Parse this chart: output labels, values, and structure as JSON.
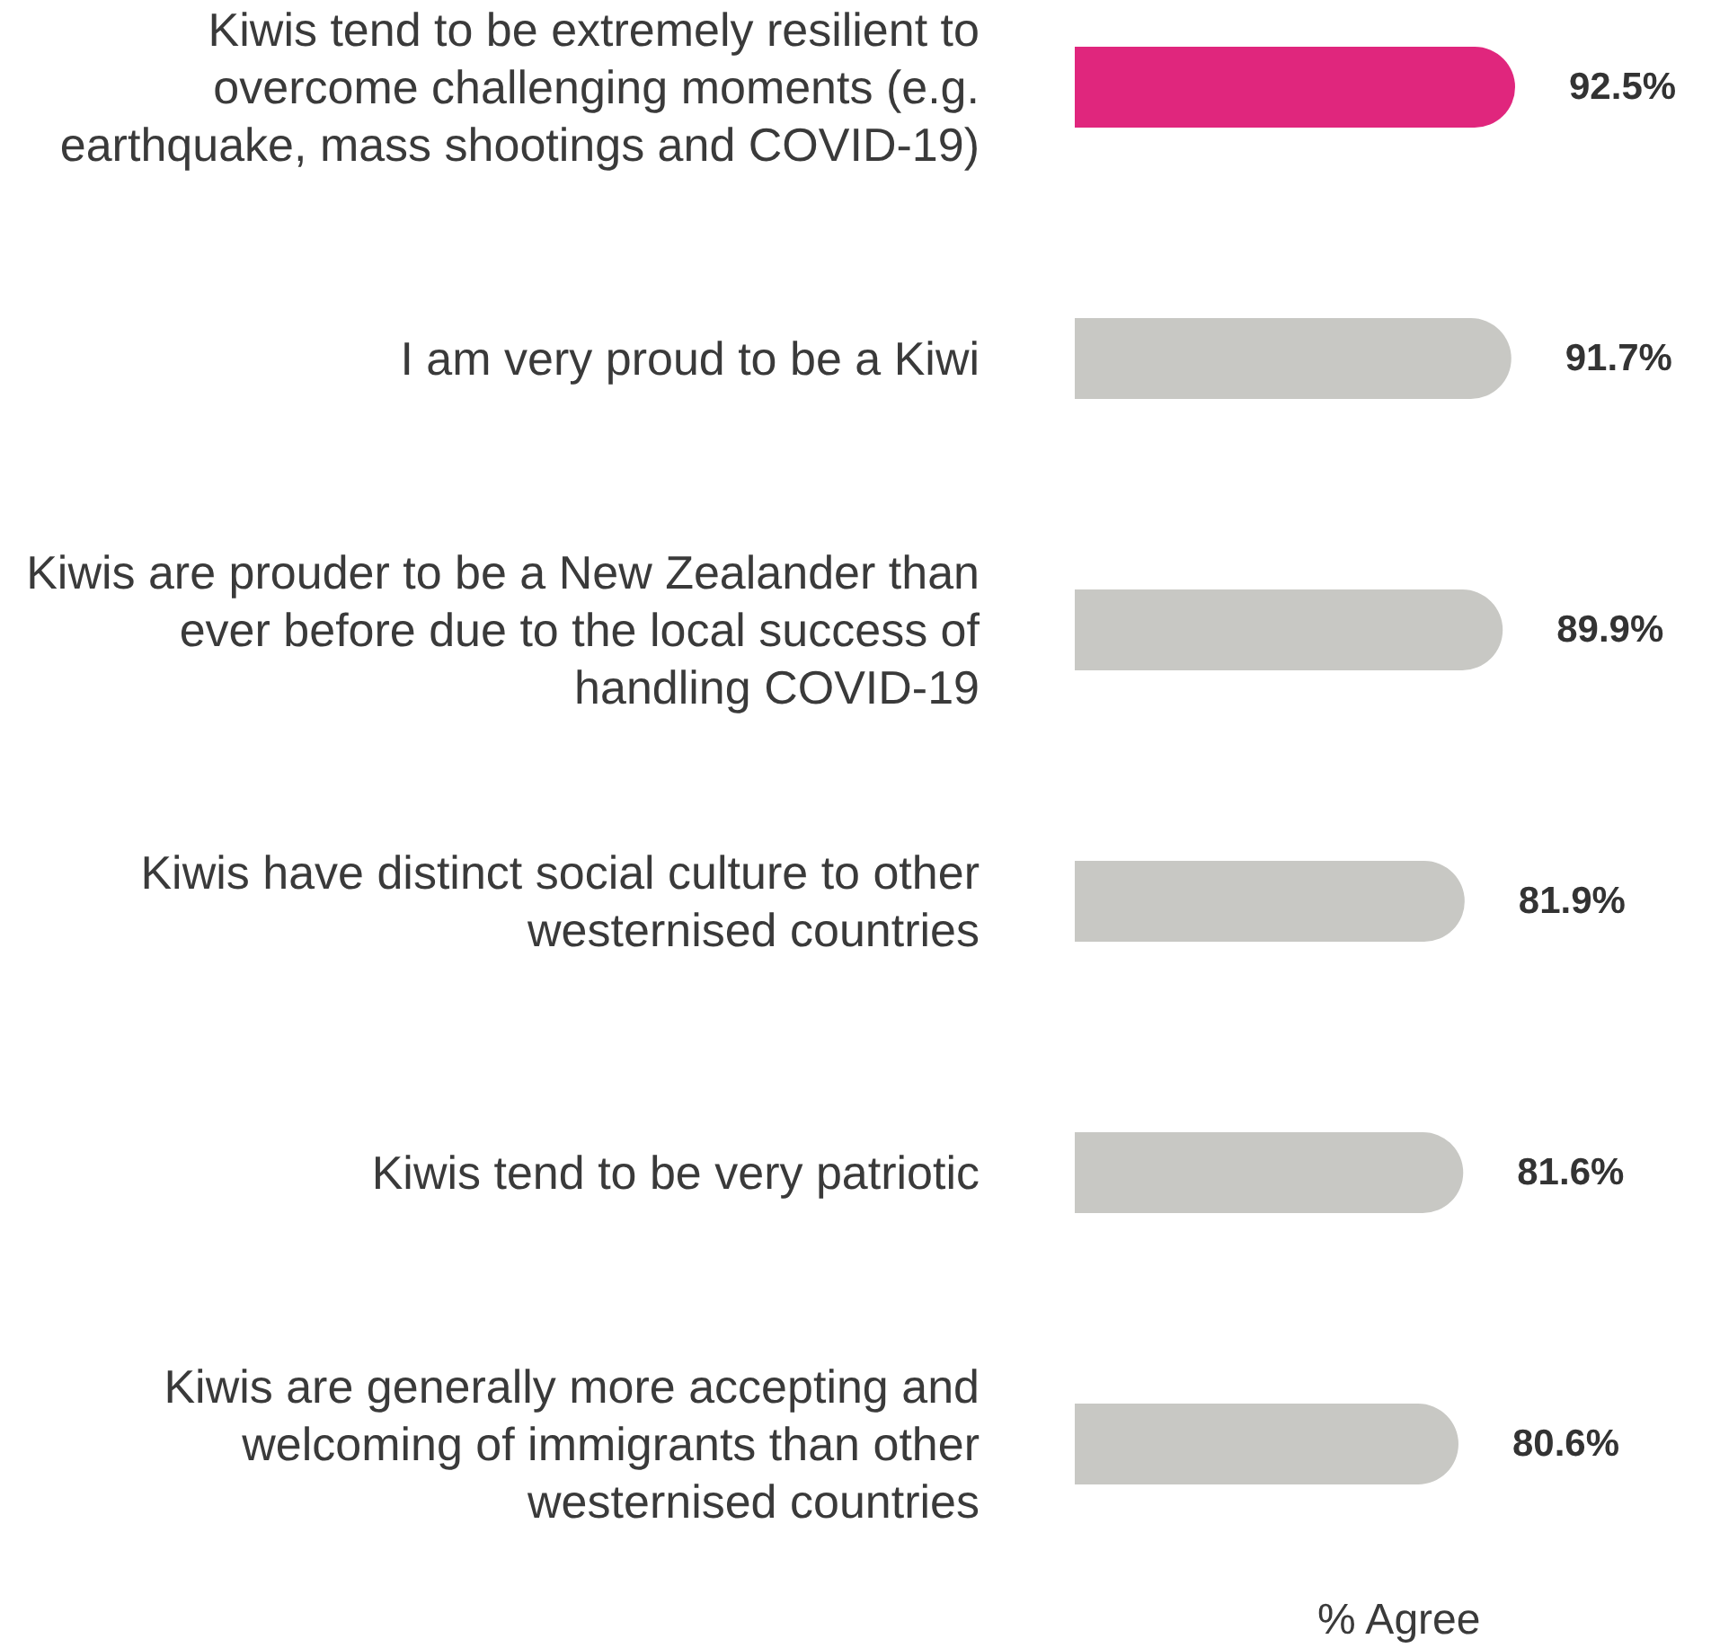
{
  "chart_data": {
    "type": "bar",
    "orientation": "horizontal",
    "xlabel": "% Agree",
    "categories": [
      "Kiwis tend to be extremely resilient to overcome challenging moments (e.g. earthquake, mass shootings and COVID-19)",
      "I am very proud to be a Kiwi",
      "Kiwis are prouder to be a New Zealander than ever before due to the local success of handling COVID-19",
      "Kiwis have distinct social culture to other westernised countries",
      "Kiwis tend to be very patriotic",
      "Kiwis are generally more accepting and welcoming of immigrants than other westernised countries"
    ],
    "values": [
      92.5,
      91.7,
      89.9,
      81.9,
      81.6,
      80.6
    ],
    "colors": [
      "#e0267d",
      "#c8c8c4",
      "#c8c8c4",
      "#c8c8c4",
      "#c8c8c4",
      "#c8c8c4"
    ],
    "value_labels": [
      "92.5%",
      "91.7%",
      "89.9%",
      "81.9%",
      "81.6%",
      "80.6%"
    ],
    "legend": false,
    "grid": false
  }
}
